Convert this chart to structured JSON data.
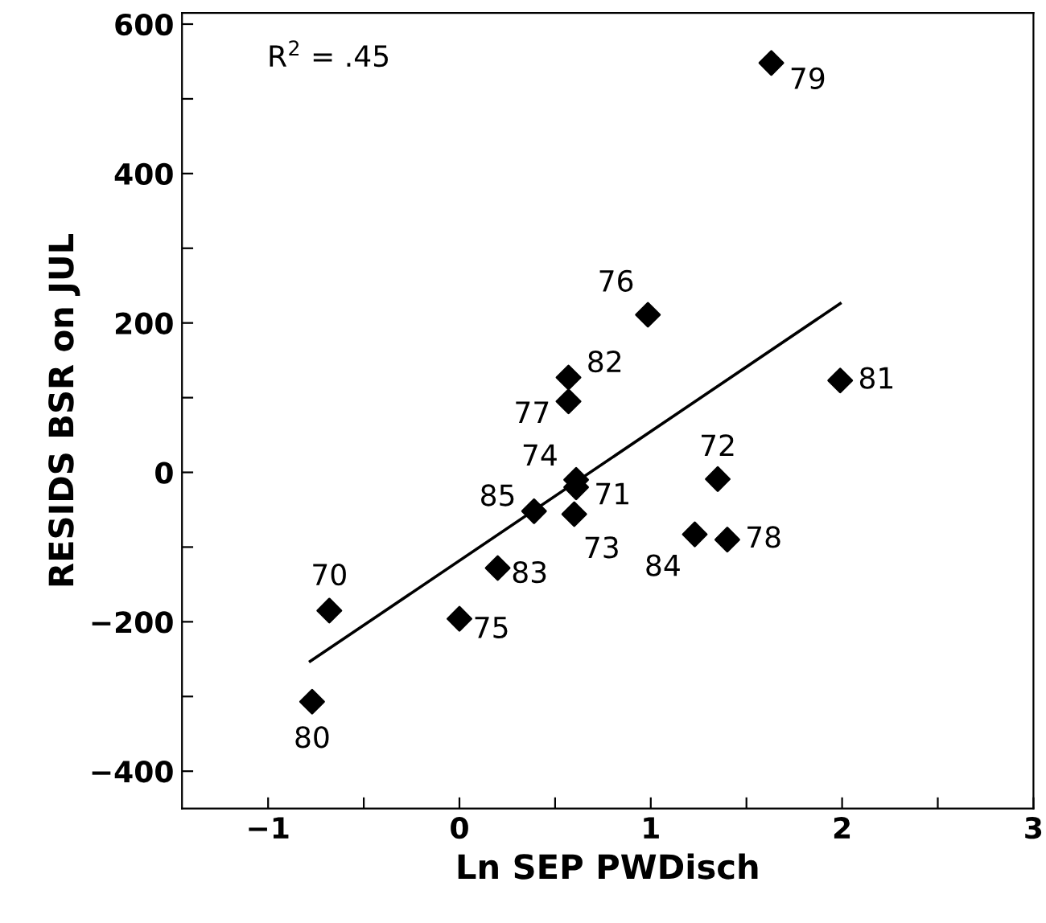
{
  "chart_data": {
    "type": "scatter",
    "xlabel": "Ln SEP PWDisch",
    "ylabel": "RESIDS BSR on JUL",
    "xlim": [
      -1.45,
      3
    ],
    "ylim": [
      -450,
      615
    ],
    "xticks": [
      -1,
      {
        "value": -0.5,
        "label": null
      },
      0,
      {
        "value": 0.5,
        "label": null
      },
      1,
      {
        "value": 1.5,
        "label": null
      },
      2,
      {
        "value": 2.5,
        "label": null
      },
      3
    ],
    "yticks": [
      -400,
      {
        "value": -300,
        "label": null
      },
      -200,
      {
        "value": -100,
        "label": null
      },
      0,
      {
        "value": 100,
        "label": null
      },
      200,
      {
        "value": 300,
        "label": null
      },
      400,
      {
        "value": 500,
        "label": null
      },
      600
    ],
    "grid": false,
    "marker": "diamond",
    "series": [
      {
        "color": "#000000",
        "x": [
          1.63,
          0.985,
          0.57,
          0.57,
          1.99,
          1.35,
          0.61,
          0.61,
          0.6,
          0.39,
          1.23,
          1.4,
          0.2,
          0.0,
          -0.68,
          -0.77
        ],
        "values": [
          548,
          211,
          127,
          95,
          123,
          -9,
          -10,
          -20,
          -56,
          -52,
          -83,
          -90,
          -128,
          -196,
          -185,
          -307
        ]
      },
      {
        "type": "line",
        "color": "#000000",
        "marker": "none",
        "line_style": "solid",
        "x": [
          -0.78,
          1.99
        ],
        "values": [
          -253,
          226
        ]
      }
    ],
    "annotations": [
      {
        "text": "79",
        "x": 1.63,
        "y": 548
      },
      {
        "text": "76",
        "x": 0.985,
        "y": 211
      },
      {
        "text": "82",
        "x": 0.57,
        "y": 127
      },
      {
        "text": "77",
        "x": 0.57,
        "y": 95
      },
      {
        "text": "81",
        "x": 1.99,
        "y": 123
      },
      {
        "text": "72",
        "x": 1.35,
        "y": -9
      },
      {
        "text": "74",
        "x": 0.61,
        "y": -10
      },
      {
        "text": "71",
        "x": 0.61,
        "y": -20
      },
      {
        "text": "73",
        "x": 0.6,
        "y": -56
      },
      {
        "text": "85",
        "x": 0.39,
        "y": -52
      },
      {
        "text": "84",
        "x": 1.23,
        "y": -83
      },
      {
        "text": "78",
        "x": 1.4,
        "y": -90
      },
      {
        "text": "83",
        "x": 0.2,
        "y": -128
      },
      {
        "text": "75",
        "x": 0.0,
        "y": -196
      },
      {
        "text": "70",
        "x": -0.68,
        "y": -185
      },
      {
        "text": "80",
        "x": -0.77,
        "y": -307
      },
      "R$^{2}$ = .45"
    ]
  }
}
